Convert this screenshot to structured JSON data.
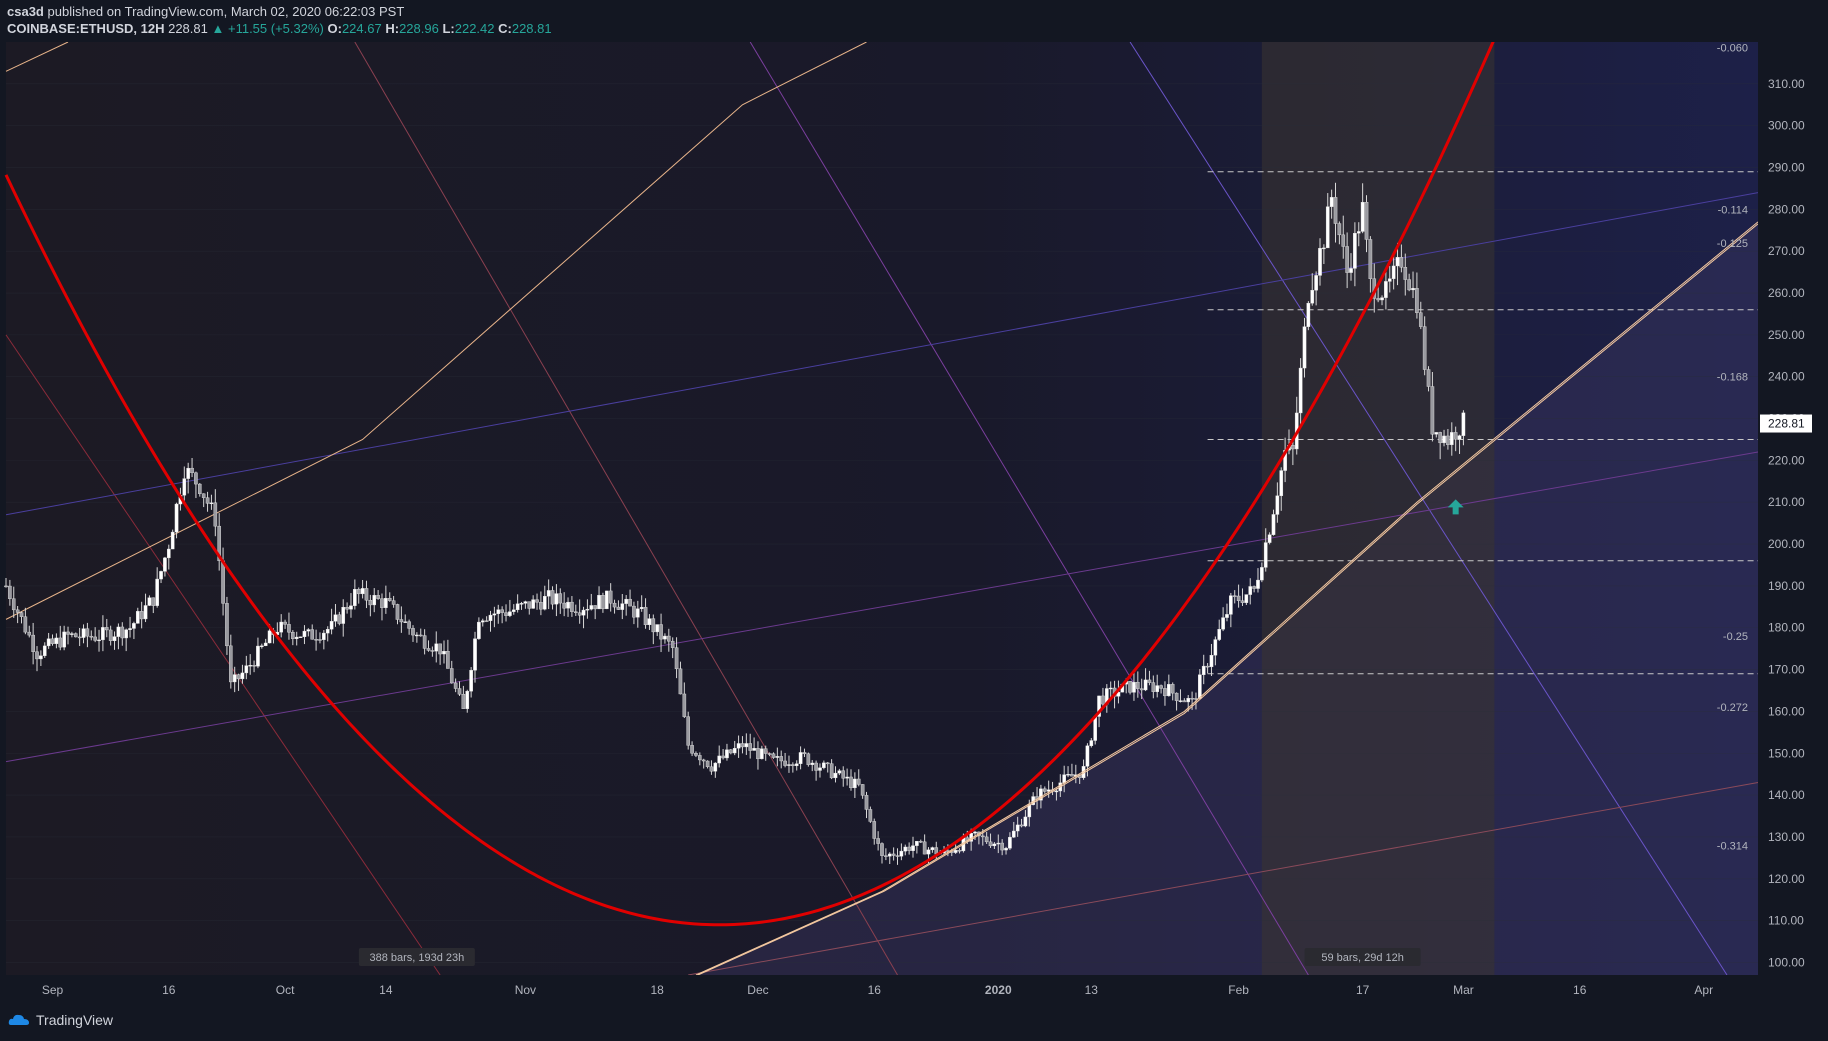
{
  "header": {
    "publisher": "csa3d",
    "published_text": "published on TradingView.com, March 02, 2020 06:22:03 PST",
    "symbol": "COINBASE:ETHUSD, 12H",
    "last": "228.81",
    "change_arrow": "▲",
    "change": "+11.55 (+5.32%)",
    "o_label": "O:",
    "o": "224.67",
    "h_label": "H:",
    "h": "228.96",
    "l_label": "L:",
    "l": "222.42",
    "c_label": "C:",
    "c": "228.81"
  },
  "footer": {
    "brand": "TradingView"
  },
  "colors": {
    "background": "#131722",
    "up": "#ffffff",
    "down": "#ffffff",
    "parabola": "#e00000",
    "trendline": "#f5c9a0",
    "price_tag": "#ffffff",
    "arrow": "#26a69a",
    "highlight_box": "#3a3530"
  },
  "chart_data": {
    "type": "candlestick",
    "symbol": "COINBASE:ETHUSD",
    "interval": "12H",
    "y_axis": {
      "ticks": [
        100,
        110,
        120,
        130,
        140,
        150,
        160,
        170,
        180,
        190,
        200,
        210,
        220,
        230,
        240,
        250,
        260,
        270,
        280,
        290,
        300,
        310
      ],
      "range": [
        97,
        320
      ]
    },
    "x_axis": {
      "ticks": [
        {
          "label": "Sep",
          "date": "2019-09-01"
        },
        {
          "label": "16",
          "date": "2019-09-16"
        },
        {
          "label": "Oct",
          "date": "2019-10-01"
        },
        {
          "label": "14",
          "date": "2019-10-14"
        },
        {
          "label": "Nov",
          "date": "2019-11-01"
        },
        {
          "label": "18",
          "date": "2019-11-18"
        },
        {
          "label": "Dec",
          "date": "2019-12-01"
        },
        {
          "label": "16",
          "date": "2019-12-16"
        },
        {
          "label": "2020",
          "date": "2020-01-01"
        },
        {
          "label": "13",
          "date": "2020-01-13"
        },
        {
          "label": "Feb",
          "date": "2020-02-01"
        },
        {
          "label": "17",
          "date": "2020-02-17"
        },
        {
          "label": "Mar",
          "date": "2020-03-01"
        },
        {
          "label": "16",
          "date": "2020-03-16"
        },
        {
          "label": "Apr",
          "date": "2020-04-01"
        }
      ],
      "range": [
        "2019-08-26",
        "2020-04-08"
      ]
    },
    "last_price": 228.81,
    "close_path": [
      [
        "2019-08-26",
        190
      ],
      [
        "2019-08-30",
        174
      ],
      [
        "2019-09-03",
        178
      ],
      [
        "2019-09-07",
        178
      ],
      [
        "2019-09-11",
        180
      ],
      [
        "2019-09-14",
        187
      ],
      [
        "2019-09-16",
        200
      ],
      [
        "2019-09-18",
        218
      ],
      [
        "2019-09-20",
        214
      ],
      [
        "2019-09-22",
        206
      ],
      [
        "2019-09-24",
        166
      ],
      [
        "2019-09-26",
        170
      ],
      [
        "2019-09-30",
        180
      ],
      [
        "2019-10-04",
        178
      ],
      [
        "2019-10-07",
        180
      ],
      [
        "2019-10-10",
        188
      ],
      [
        "2019-10-14",
        186
      ],
      [
        "2019-10-18",
        178
      ],
      [
        "2019-10-21",
        175
      ],
      [
        "2019-10-24",
        160
      ],
      [
        "2019-10-26",
        183
      ],
      [
        "2019-10-30",
        184
      ],
      [
        "2019-11-04",
        187
      ],
      [
        "2019-11-08",
        185
      ],
      [
        "2019-11-12",
        187
      ],
      [
        "2019-11-16",
        183
      ],
      [
        "2019-11-20",
        175
      ],
      [
        "2019-11-22",
        152
      ],
      [
        "2019-11-25",
        147
      ],
      [
        "2019-11-29",
        152
      ],
      [
        "2019-12-03",
        148
      ],
      [
        "2019-12-07",
        149
      ],
      [
        "2019-12-11",
        145
      ],
      [
        "2019-12-14",
        142
      ],
      [
        "2019-12-17",
        125
      ],
      [
        "2019-12-21",
        128
      ],
      [
        "2019-12-25",
        126
      ],
      [
        "2019-12-29",
        130
      ],
      [
        "2020-01-02",
        128
      ],
      [
        "2020-01-06",
        140
      ],
      [
        "2020-01-09",
        143
      ],
      [
        "2020-01-12",
        146
      ],
      [
        "2020-01-14",
        163
      ],
      [
        "2020-01-18",
        166
      ],
      [
        "2020-01-22",
        166
      ],
      [
        "2020-01-26",
        162
      ],
      [
        "2020-01-28",
        172
      ],
      [
        "2020-01-31",
        186
      ],
      [
        "2020-02-03",
        189
      ],
      [
        "2020-02-05",
        204
      ],
      [
        "2020-02-07",
        222
      ],
      [
        "2020-02-08",
        222
      ],
      [
        "2020-02-10",
        260
      ],
      [
        "2020-02-12",
        273
      ],
      [
        "2020-02-13",
        283
      ],
      [
        "2020-02-15",
        265
      ],
      [
        "2020-02-17",
        280
      ],
      [
        "2020-02-18",
        262
      ],
      [
        "2020-02-20",
        260
      ],
      [
        "2020-02-22",
        268
      ],
      [
        "2020-02-24",
        258
      ],
      [
        "2020-02-26",
        228
      ],
      [
        "2020-02-28",
        225
      ],
      [
        "2020-03-01",
        229
      ]
    ],
    "overlays": [
      {
        "kind": "horizontal-dashed",
        "price": 289
      },
      {
        "kind": "horizontal-dashed",
        "price": 256
      },
      {
        "kind": "horizontal-dashed",
        "price": 225
      },
      {
        "kind": "horizontal-dashed",
        "price": 196
      },
      {
        "kind": "horizontal-dashed",
        "price": 169
      }
    ],
    "fib_labels": [
      {
        "text": "-0.060",
        "price": 318.7
      },
      {
        "text": "-0.114",
        "price": 280
      },
      {
        "text": "-0.125",
        "price": 272
      },
      {
        "text": "-0.168",
        "price": 240
      },
      {
        "text": "-0.25",
        "price": 178
      },
      {
        "text": "-0.272",
        "price": 161
      },
      {
        "text": "-0.314",
        "price": 128
      }
    ],
    "range_boxes": [
      {
        "label": "388 bars, 193d 23h",
        "start": "2019-08-26",
        "end": "2020-03-06"
      },
      {
        "label": "59 bars, 29d 12h",
        "start": "2020-02-04",
        "end": "2020-03-05"
      }
    ]
  }
}
